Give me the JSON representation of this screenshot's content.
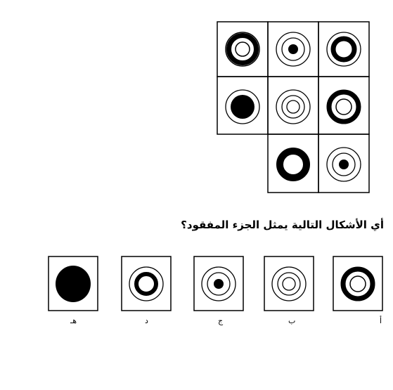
{
  "question": "أي الأشكال التالية يمثل الجزء المفقود؟",
  "options": [
    {
      "label": "أ",
      "pattern": "thick-outer-ring-with-thin-inner-ring"
    },
    {
      "label": "ب",
      "pattern": "three-thin-concentric-rings"
    },
    {
      "label": "ج",
      "pattern": "two-thin-rings-with-solid-center"
    },
    {
      "label": "د",
      "pattern": "thin-ring-thick-ring-white-center"
    },
    {
      "label": "هـ",
      "pattern": "solid-black-disc"
    }
  ],
  "grid": {
    "rows": 3,
    "cols": 3,
    "missing_cell": "row-3-col-1"
  },
  "colors": {
    "ink": "#000000",
    "paper": "#ffffff"
  }
}
